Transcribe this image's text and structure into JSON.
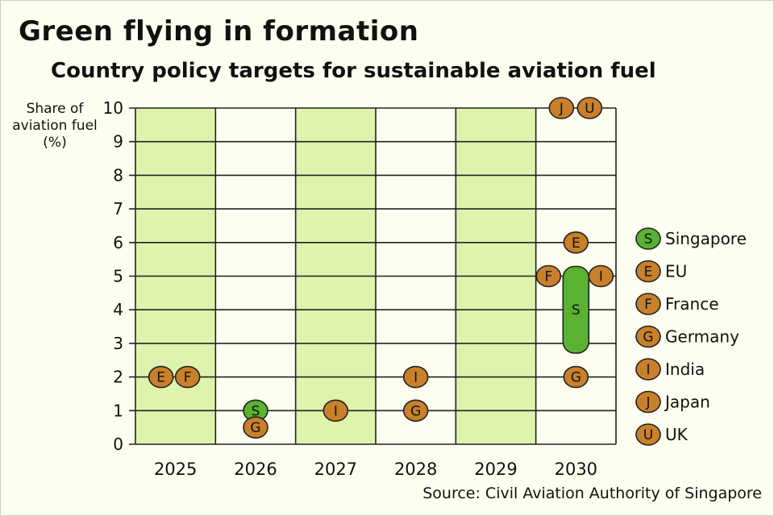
{
  "title": "Green flying in formation",
  "subtitle": "Country policy targets for sustainable aviation fuel",
  "source": "Source: Civil Aviation Authority of Singapore",
  "chart_data": {
    "type": "scatter",
    "title": "Green flying in formation",
    "subtitle": "Country policy targets for sustainable aviation fuel",
    "ylabel": "Share of aviation fuel (%)",
    "ylim": [
      0,
      10
    ],
    "yticks": [
      "0",
      "1",
      "2",
      "3",
      "4",
      "5",
      "6",
      "7",
      "8",
      "9",
      "10"
    ],
    "categories": [
      "2025",
      "2026",
      "2027",
      "2028",
      "2029",
      "2030"
    ],
    "shaded_years": [
      "2025",
      "2027",
      "2029"
    ],
    "grid": true,
    "legend_position": "right",
    "colors": {
      "singapore": "#5ab232",
      "other": "#c9802a",
      "shade": "#def3ac",
      "background": "#fdfdf0"
    },
    "legend": [
      {
        "letter": "S",
        "name": "Singapore"
      },
      {
        "letter": "E",
        "name": "EU"
      },
      {
        "letter": "F",
        "name": "France"
      },
      {
        "letter": "G",
        "name": "Germany"
      },
      {
        "letter": "I",
        "name": "India"
      },
      {
        "letter": "J",
        "name": "Japan"
      },
      {
        "letter": "U",
        "name": "UK"
      }
    ],
    "points": [
      {
        "year": "2025",
        "letter": "E",
        "value": 2
      },
      {
        "year": "2025",
        "letter": "F",
        "value": 2
      },
      {
        "year": "2026",
        "letter": "S",
        "value": 1
      },
      {
        "year": "2026",
        "letter": "G",
        "value": 0.5
      },
      {
        "year": "2027",
        "letter": "I",
        "value": 1
      },
      {
        "year": "2028",
        "letter": "I",
        "value": 2
      },
      {
        "year": "2028",
        "letter": "G",
        "value": 1
      },
      {
        "year": "2030",
        "letter": "J",
        "value": 10
      },
      {
        "year": "2030",
        "letter": "U",
        "value": 10
      },
      {
        "year": "2030",
        "letter": "E",
        "value": 6
      },
      {
        "year": "2030",
        "letter": "F",
        "value": 5
      },
      {
        "year": "2030",
        "letter": "I",
        "value": 5
      },
      {
        "year": "2030",
        "letter": "G",
        "value": 2
      },
      {
        "year": "2030",
        "letter": "S",
        "value_range": [
          3,
          5
        ]
      }
    ]
  }
}
